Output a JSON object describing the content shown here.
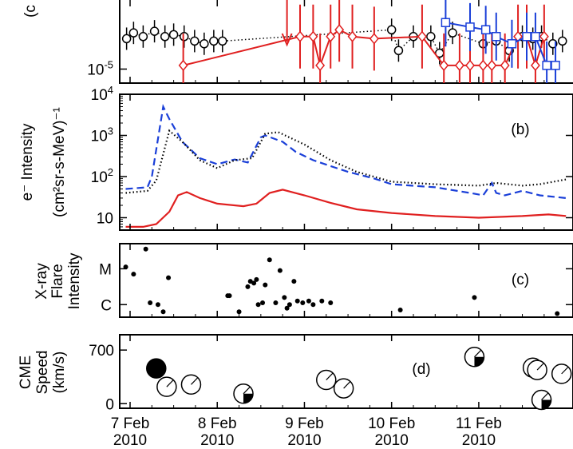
{
  "figure": {
    "x_axis": {
      "range_days": [
        0,
        5.0
      ],
      "ticks": [
        {
          "day": 0,
          "line1": "7 Feb",
          "line2": "2010"
        },
        {
          "day": 1,
          "line1": "8 Feb",
          "line2": "2010"
        },
        {
          "day": 2,
          "line1": "9 Feb",
          "line2": "2010"
        },
        {
          "day": 3,
          "line1": "10 Feb",
          "line2": "2010"
        },
        {
          "day": 4,
          "line1": "11 Feb",
          "line2": "2010"
        }
      ]
    }
  },
  "chart_data": [
    {
      "panel": "a",
      "type": "scatter",
      "note": "Panel partially cropped at top; only lower portion visible",
      "panel_label": "(c",
      "ylabel": "",
      "yscale": "log",
      "ylim": [
        5e-06,
        0.001
      ],
      "yticks": [
        {
          "value": 1e-05,
          "base": "10",
          "exp": "-5"
        }
      ],
      "colors": {
        "black": "#000000",
        "red": "#e02020",
        "blue": "#1a3fd8"
      },
      "series": [
        {
          "name": "black circles",
          "marker": "circle",
          "x": [
            -0.04,
            0.04,
            0.15,
            0.28,
            0.4,
            0.5,
            0.62,
            0.74,
            0.85,
            0.96,
            1.06,
            3.0,
            3.08,
            3.25,
            3.45,
            3.55,
            3.7,
            4.05,
            4.2,
            4.35,
            4.5,
            4.62,
            4.72,
            4.85,
            4.96
          ],
          "y": [
            4.5e-05,
            6e-05,
            5e-05,
            6.5e-05,
            5e-05,
            5.5e-05,
            5e-05,
            4e-05,
            3.5e-05,
            4e-05,
            4e-05,
            7e-05,
            2.5e-05,
            5e-05,
            5e-05,
            2.2e-05,
            6e-05,
            3.5e-05,
            4e-05,
            2.5e-05,
            5e-05,
            4.5e-05,
            5e-05,
            3.5e-05,
            4e-05
          ]
        },
        {
          "name": "red diamonds",
          "marker": "diamond",
          "x": [
            0.61,
            1.95,
            2.1,
            2.18,
            2.3,
            2.4,
            2.55,
            2.8,
            3.35,
            3.6,
            3.78,
            3.9,
            4.05,
            4.15,
            4.3,
            4.45,
            4.55,
            4.65,
            4.75
          ],
          "y": [
            1.2e-05,
            5e-05,
            5e-05,
            1.2e-05,
            5e-05,
            7e-05,
            5e-05,
            4.5e-05,
            5e-05,
            1.2e-05,
            1.2e-05,
            1.2e-05,
            1.2e-05,
            1.2e-05,
            1.2e-05,
            5e-05,
            5e-05,
            1.2e-05,
            5e-05
          ]
        },
        {
          "name": "blue squares",
          "marker": "square",
          "x": [
            3.62,
            3.9,
            4.08,
            4.2,
            4.38,
            4.55,
            4.65,
            4.78,
            4.88
          ],
          "y": [
            0.0001,
            8e-05,
            7e-05,
            5e-05,
            3.5e-05,
            5e-05,
            5e-05,
            1.2e-05,
            1.2e-05
          ]
        }
      ]
    },
    {
      "panel": "b",
      "type": "line",
      "panel_label": "(b)",
      "ylabel_line1": "e⁻ Intensity",
      "ylabel_line2": "(cm²sr-s-MeV)⁻¹",
      "yscale": "log",
      "ylim": [
        5,
        10000
      ],
      "yticks": [
        {
          "value": 10,
          "base": "10",
          "exp": ""
        },
        {
          "value": 100,
          "base": "10",
          "exp": "2"
        },
        {
          "value": 1000,
          "base": "10",
          "exp": "3"
        },
        {
          "value": 10000,
          "base": "10",
          "exp": "4"
        }
      ],
      "series": [
        {
          "name": "blue dashed",
          "color": "#1a3fd8",
          "style": "dashed",
          "x": [
            -0.05,
            0.2,
            0.25,
            0.38,
            0.45,
            0.6,
            0.8,
            1.0,
            1.2,
            1.35,
            1.5,
            1.55,
            1.75,
            1.9,
            2.1,
            2.3,
            2.5,
            2.8,
            3.0,
            3.5,
            3.9,
            4.05,
            4.15,
            4.2,
            4.3,
            4.5,
            4.7,
            5.0
          ],
          "y": [
            50,
            55,
            100,
            5000,
            2500,
            700,
            280,
            200,
            260,
            220,
            900,
            1000,
            700,
            400,
            250,
            180,
            130,
            90,
            65,
            55,
            40,
            35,
            70,
            40,
            35,
            45,
            35,
            30
          ]
        },
        {
          "name": "black dotted",
          "color": "#000000",
          "style": "dotted",
          "x": [
            -0.05,
            0.2,
            0.3,
            0.45,
            0.6,
            0.8,
            1.0,
            1.2,
            1.4,
            1.55,
            1.7,
            2.0,
            2.3,
            2.6,
            3.0,
            3.5,
            4.0,
            4.2,
            4.5,
            4.7,
            5.0
          ],
          "y": [
            40,
            45,
            80,
            1300,
            700,
            250,
            160,
            250,
            280,
            1100,
            1200,
            600,
            250,
            130,
            75,
            65,
            60,
            70,
            60,
            65,
            85
          ]
        },
        {
          "name": "red solid",
          "color": "#e02020",
          "style": "solid",
          "x": [
            -0.05,
            0.15,
            0.3,
            0.45,
            0.55,
            0.65,
            0.8,
            1.0,
            1.3,
            1.45,
            1.6,
            1.75,
            2.0,
            2.3,
            2.6,
            3.0,
            3.5,
            4.0,
            4.5,
            4.8,
            5.0
          ],
          "y": [
            6,
            6,
            7,
            14,
            35,
            42,
            30,
            22,
            19,
            22,
            40,
            48,
            35,
            23,
            16,
            13,
            11,
            10,
            11,
            12,
            11
          ]
        }
      ]
    },
    {
      "panel": "c",
      "type": "scatter",
      "panel_label": "(c)",
      "ylabel_lines": [
        "X-ray",
        "Flare",
        "Intensity"
      ],
      "yticks": [
        {
          "value": "M",
          "level": 1.0
        },
        {
          "value": "C",
          "level": 0.0
        }
      ],
      "ylim": [
        -0.35,
        1.7
      ],
      "points_x": [
        -0.05,
        0.04,
        0.18,
        0.23,
        0.32,
        0.38,
        0.44,
        1.12,
        1.14,
        1.25,
        1.35,
        1.38,
        1.42,
        1.45,
        1.47,
        1.52,
        1.55,
        1.6,
        1.67,
        1.72,
        1.77,
        1.8,
        1.83,
        1.88,
        1.92,
        1.98,
        2.05,
        2.1,
        2.2,
        2.3,
        3.1,
        3.95,
        4.9
      ],
      "points_y": [
        1.05,
        0.85,
        1.55,
        0.05,
        0.0,
        -0.2,
        0.75,
        0.25,
        0.25,
        -0.2,
        0.5,
        0.65,
        0.6,
        0.7,
        0.0,
        0.05,
        0.55,
        1.25,
        0.05,
        0.95,
        0.2,
        -0.1,
        0.0,
        0.65,
        0.1,
        0.05,
        0.1,
        0.0,
        0.1,
        0.05,
        -0.15,
        0.2,
        -0.25
      ]
    },
    {
      "panel": "d",
      "type": "scatter",
      "panel_label": "(d)",
      "ylabel_lines": [
        "CME",
        "Speed",
        "(km/s)"
      ],
      "ylim": [
        -60,
        900
      ],
      "yticks": [
        {
          "value": 0
        },
        {
          "value": 700
        }
      ],
      "markers": [
        {
          "x": 0.3,
          "speed": 460,
          "fill": "full"
        },
        {
          "x": 0.42,
          "speed": 220,
          "fill": "none"
        },
        {
          "x": 0.7,
          "speed": 250,
          "fill": "none"
        },
        {
          "x": 1.3,
          "speed": 130,
          "fill": "quarter"
        },
        {
          "x": 2.25,
          "speed": 310,
          "fill": "none"
        },
        {
          "x": 2.45,
          "speed": 200,
          "fill": "none"
        },
        {
          "x": 3.95,
          "speed": 610,
          "fill": "quarter"
        },
        {
          "x": 4.62,
          "speed": 470,
          "fill": "eighth"
        },
        {
          "x": 4.67,
          "speed": 440,
          "fill": "none"
        },
        {
          "x": 4.95,
          "speed": 390,
          "fill": "none"
        },
        {
          "x": 4.72,
          "speed": 50,
          "fill": "quarter"
        }
      ]
    }
  ]
}
